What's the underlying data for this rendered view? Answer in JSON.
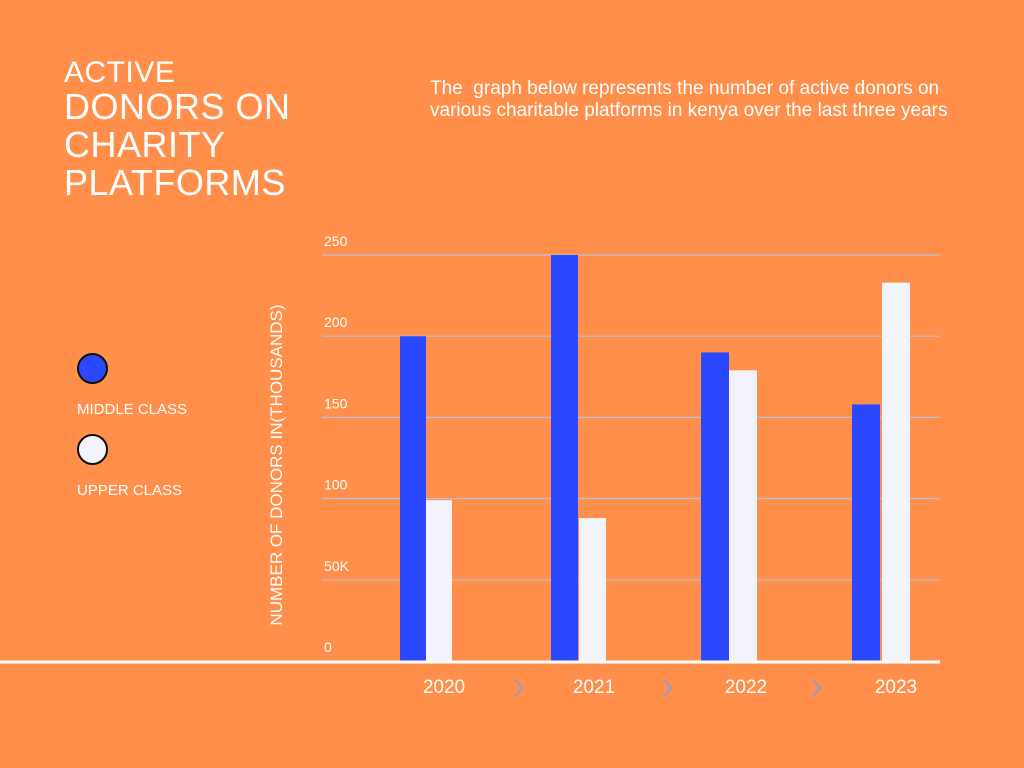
{
  "title": {
    "line1": "ACTIVE",
    "line2": "DONORS ON",
    "line3": "CHARITY",
    "line4": "PLATFORMS"
  },
  "description": "The  graph below represents the number of active donors on various charitable platforms in kenya over the last three years",
  "legend": {
    "items": [
      {
        "label": "MIDDLE CLASS",
        "color": "#2B48FF"
      },
      {
        "label": "UPPER CLASS",
        "color": "#F3F4FB"
      }
    ]
  },
  "axis": {
    "ylabel": "NUMBER OF DONORS IN(THOUSANDS)",
    "separator_icon": "chevron-right-icon"
  },
  "chart_data": {
    "type": "bar",
    "categories": [
      "2020",
      "2021",
      "2022",
      "2023"
    ],
    "series": [
      {
        "name": "MIDDLE CLASS",
        "color": "#2B48FF",
        "values": [
          200,
          250,
          190,
          158
        ]
      },
      {
        "name": "UPPER CLASS",
        "color": "#F3F4FB",
        "values": [
          99,
          88,
          179,
          233
        ]
      }
    ],
    "ylim": [
      0,
      250
    ],
    "yticks": [
      0,
      50,
      100,
      150,
      200,
      250
    ],
    "ytick_labels": [
      "0",
      "50K",
      "100",
      "150",
      "200",
      "250"
    ],
    "ylabel": "NUMBER OF DONORS IN(THOUSANDS)",
    "grid": true,
    "legend_placement": "left"
  },
  "colors": {
    "background": "#FF8F4A",
    "gridline": "#B8BFD8",
    "baseline": "#FFFFFF",
    "chevron": "#8A9BE0"
  }
}
